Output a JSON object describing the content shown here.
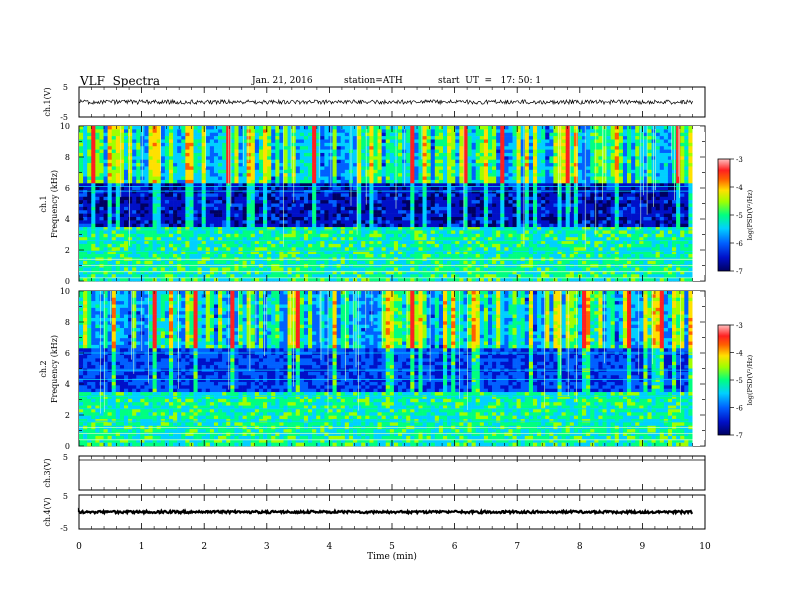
{
  "header": {
    "title": "VLF  Spectra",
    "date": "Jan. 21, 2016",
    "station": "station=ATH",
    "start": "start  UT  =   17: 50: 1"
  },
  "chart_data": [
    {
      "id": "ch1-waveform",
      "type": "line",
      "ylabel": "ch.1(V)",
      "ytick_labels": [
        "5",
        "-5"
      ],
      "ylim": [
        -5,
        5
      ],
      "description_values": {
        "baseline": 0,
        "noise_amplitude": 0.6
      }
    },
    {
      "id": "ch1-spectrogram",
      "type": "heatmap",
      "ylabel": "ch.1",
      "ylabel2": "Frequency  (kHz)",
      "ytick_labels": [
        "0",
        "2",
        "4",
        "6",
        "8",
        "10"
      ],
      "ylim": [
        0,
        10
      ],
      "colorbar": {
        "label": "log(PSD(V²/Hz)",
        "tick_labels": [
          "-3",
          "-4",
          "-5",
          "-6",
          "-7"
        ],
        "range": [
          -7,
          -3
        ]
      }
    },
    {
      "id": "ch2-spectrogram",
      "type": "heatmap",
      "ylabel": "ch.2",
      "ylabel2": "Frequency  (kHz)",
      "ytick_labels": [
        "0",
        "2",
        "4",
        "6",
        "8",
        "10"
      ],
      "ylim": [
        0,
        10
      ],
      "colorbar": {
        "label": "log(PSD(V²/Hz)",
        "tick_labels": [
          "-3",
          "-4",
          "-5",
          "-6",
          "-7"
        ],
        "range": [
          -7,
          -3
        ]
      }
    },
    {
      "id": "ch3-waveform",
      "type": "line",
      "ylabel": "ch.3(V)",
      "ytick_labels": [
        "5"
      ],
      "ylim": [
        -5,
        5
      ]
    },
    {
      "id": "ch4-waveform",
      "type": "line",
      "ylabel": "ch.4(V)",
      "ytick_labels": [
        "5",
        "-5"
      ],
      "ylim": [
        -5,
        5
      ]
    }
  ],
  "xaxis": {
    "xlabel": "Time  (min)",
    "xlim": [
      0,
      10
    ],
    "tick_labels": [
      "0",
      "1",
      "2",
      "3",
      "4",
      "5",
      "6",
      "7",
      "8",
      "9",
      "10"
    ],
    "data_end_minute": 9.8
  },
  "colors": {
    "colormap": [
      "#000060",
      "#0010c8",
      "#0060ff",
      "#00d0ff",
      "#00ff80",
      "#a0ff00",
      "#ffe000",
      "#ff6000",
      "#ff2020",
      "#ff8080",
      "#ffffff"
    ]
  }
}
